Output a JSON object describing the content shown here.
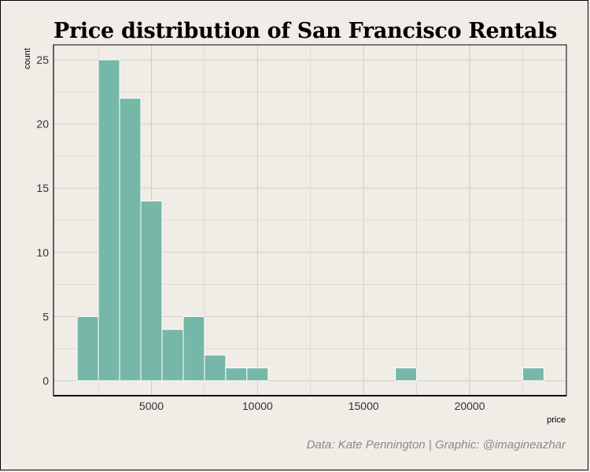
{
  "chart_data": {
    "type": "bar",
    "title": "Price distribution of San Francisco Rentals",
    "xlabel": "price",
    "ylabel": "count",
    "caption": "Data: Kate Pennington | Graphic: @imagineazhar",
    "bin_width": 1000,
    "xlim": [
      0,
      25000
    ],
    "ylim": [
      0,
      25
    ],
    "xticks": [
      5000,
      10000,
      15000,
      20000
    ],
    "yticks": [
      0,
      5,
      10,
      15,
      20,
      25
    ],
    "grid": true,
    "bar_color": "#76b7a8",
    "bins": [
      {
        "x": 2000,
        "count": 5
      },
      {
        "x": 3000,
        "count": 25
      },
      {
        "x": 4000,
        "count": 22
      },
      {
        "x": 5000,
        "count": 14
      },
      {
        "x": 6000,
        "count": 4
      },
      {
        "x": 7000,
        "count": 5
      },
      {
        "x": 8000,
        "count": 2
      },
      {
        "x": 9000,
        "count": 1
      },
      {
        "x": 10000,
        "count": 1
      },
      {
        "x": 17000,
        "count": 1
      },
      {
        "x": 23000,
        "count": 1
      }
    ]
  }
}
